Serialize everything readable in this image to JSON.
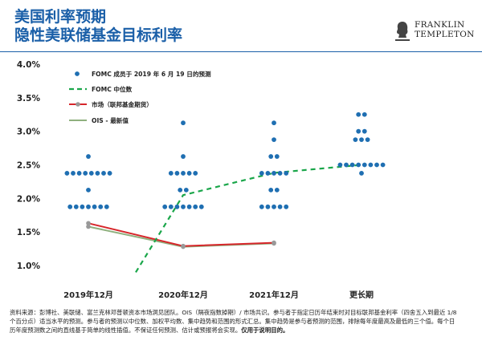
{
  "header": {
    "title_line1": "美国利率预期",
    "title_line2": "隐性美联储基金目标利率",
    "logo_line1": "FRANKLIN",
    "logo_line2": "TEMPLETON"
  },
  "chart_data": {
    "type": "scatter",
    "categories": [
      "2019年12月",
      "2020年12月",
      "2021年12月",
      "更长期"
    ],
    "yticks": [
      "4.0%",
      "3.5%",
      "3.0%",
      "2.5%",
      "2.0%",
      "1.5%",
      "1.0%"
    ],
    "ylim": [
      0.9,
      4.0
    ],
    "grid": false,
    "legend_position": "top-left",
    "legend": [
      "FOMC 成员于 2019 年 6 月 19 日的预测",
      "FOMC 中位数",
      "市场（联邦基金期货）",
      "OIS - 最新值"
    ],
    "colors": {
      "dots": "#1f6fb2",
      "median": "#1aa64a",
      "market": "#d7262b",
      "ois": "#8fb07e",
      "marker": "#999999"
    },
    "fomc_dots": [
      {
        "category": "2019年12月",
        "values": [
          2.625,
          2.375,
          2.375,
          2.375,
          2.375,
          2.375,
          2.375,
          2.375,
          2.375,
          2.125,
          1.875,
          1.875,
          1.875,
          1.875,
          1.875,
          1.875,
          1.875
        ]
      },
      {
        "category": "2020年12月",
        "values": [
          3.125,
          2.625,
          2.375,
          2.375,
          2.375,
          2.375,
          2.375,
          2.125,
          2.125,
          1.875,
          1.875,
          1.875,
          1.875,
          1.875,
          1.875,
          1.875
        ]
      },
      {
        "category": "2021年12月",
        "values": [
          3.125,
          2.875,
          2.625,
          2.625,
          2.375,
          2.375,
          2.375,
          2.375,
          2.375,
          2.125,
          2.125,
          1.875,
          1.875,
          1.875,
          1.875,
          1.875
        ]
      },
      {
        "category": "更长期",
        "values": [
          3.25,
          3.25,
          3.0,
          3.0,
          2.875,
          2.875,
          2.875,
          2.5,
          2.5,
          2.5,
          2.5,
          2.5,
          2.5,
          2.5,
          2.5,
          2.375
        ]
      }
    ],
    "series": [
      {
        "name": "FOMC 中位数",
        "x": [
          0.5,
          1.0,
          2.0,
          3.0
        ],
        "values": [
          0.9,
          2.05,
          2.38,
          2.5
        ]
      },
      {
        "name": "市场（联邦基金期货）",
        "x": [
          0,
          1,
          2
        ],
        "values": [
          1.63,
          1.29,
          1.34
        ]
      },
      {
        "name": "OIS - 最新值",
        "x": [
          0,
          1,
          2
        ],
        "values": [
          1.58,
          1.28,
          1.33
        ]
      }
    ]
  },
  "footnote": {
    "text": "资料来源：彭博社、美联储、富兰克林邓普顿资本市场洞见团队。OIS（隔夜指数掉期）/ 市场共识。参与者于指定日历年结束时对目标联邦基金利率（四舍五入到最近 1/8 个百分点）适当水平的预测。参与者的预测以中位数、加权平均数、集中趋势和范围的形式汇总。集中趋势是参与者预测的范围，排除每年度最高及最低的三个值。每个日历年度预测数之间的直线基于简单的线性插值。不保证任何预测、估计或预报将会实现。",
    "bold": "仅用于说明目的。"
  }
}
